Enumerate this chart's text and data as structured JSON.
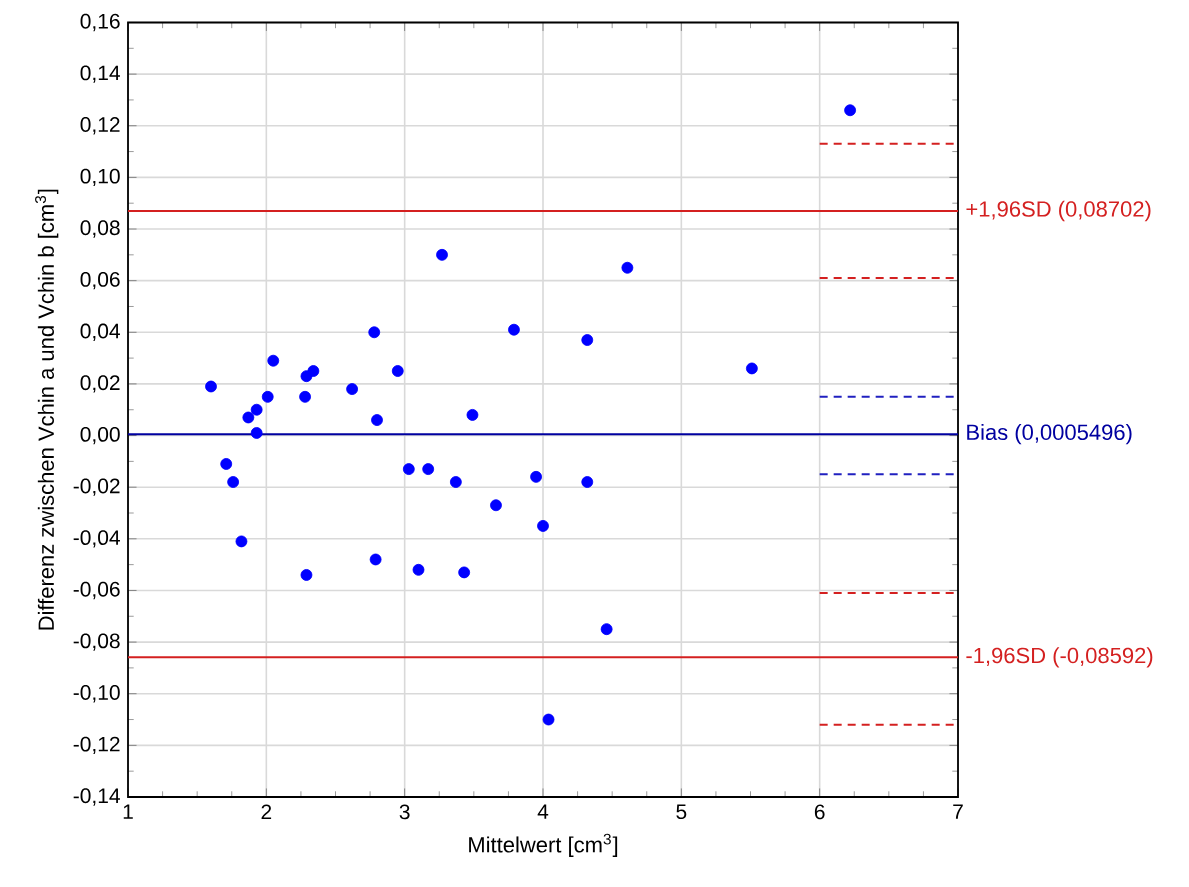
{
  "chart_data": {
    "type": "scatter",
    "xlabel": "Mittelwert [cm$^{3}$]",
    "ylabel": "Differenz zwischen Vchin a und Vchin b [cm$^{3}$]",
    "xlim": [
      1,
      7
    ],
    "xticks": [
      1,
      2,
      3,
      4,
      5,
      6,
      7
    ],
    "ylim": [
      -0.14,
      0.16
    ],
    "yticks": [
      {
        "value": -0.14,
        "label": "-0,14"
      },
      {
        "value": -0.12,
        "label": "-0,12"
      },
      {
        "value": -0.1,
        "label": "-0,10"
      },
      {
        "value": -0.08,
        "label": "-0,08"
      },
      {
        "value": -0.06,
        "label": "-0,06"
      },
      {
        "value": -0.04,
        "label": "-0,04"
      },
      {
        "value": -0.02,
        "label": "-0,02"
      },
      {
        "value": 0,
        "label": "0,00"
      },
      {
        "value": 0.02,
        "label": "0,02"
      },
      {
        "value": 0.04,
        "label": "0,04"
      },
      {
        "value": 0.06,
        "label": "0,06"
      },
      {
        "value": 0.08,
        "label": "0,08"
      },
      {
        "value": 0.1,
        "label": "0,10"
      },
      {
        "value": 0.12,
        "label": "0,12"
      },
      {
        "value": 0.14,
        "label": "0,14"
      },
      {
        "value": 0.16,
        "label": "0,16"
      }
    ],
    "grid": true,
    "marker": "circle",
    "series": [
      {
        "color": "#0000ff",
        "x": [
          1.6,
          1.87,
          1.93,
          1.93,
          2.01,
          2.05,
          2.28,
          2.29,
          2.34,
          2.62,
          2.78,
          2.8,
          2.95,
          3.27,
          3.49,
          3.79,
          4.32,
          4.61,
          5.51,
          6.22,
          1.71,
          1.76,
          1.82,
          2.29,
          2.79,
          3.03,
          3.17,
          3.1,
          3.37,
          3.43,
          3.66,
          3.95,
          4.0,
          4.32,
          4.46,
          4.04
        ],
        "values": [
          0.019,
          0.007,
          0.01,
          0.001,
          0.015,
          0.029,
          0.015,
          0.023,
          0.025,
          0.018,
          0.04,
          0.006,
          0.025,
          0.07,
          0.008,
          0.041,
          0.037,
          0.065,
          0.026,
          0.126,
          -0.011,
          -0.018,
          -0.041,
          -0.054,
          -0.048,
          -0.013,
          -0.013,
          -0.052,
          -0.018,
          -0.053,
          -0.027,
          -0.016,
          -0.035,
          -0.018,
          -0.075,
          -0.11
        ]
      },
      {
        "type": "line",
        "color": "#d42020",
        "line_style": "dashed",
        "marker": "none",
        "x": [
          6,
          7
        ],
        "values": [
          0.113,
          0.113
        ]
      },
      {
        "type": "line",
        "color": "#d42020",
        "line_style": "dashed",
        "marker": "none",
        "x": [
          6,
          7
        ],
        "values": [
          0.061,
          0.061
        ]
      },
      {
        "type": "line",
        "color": "#2020c0",
        "line_style": "dashed",
        "marker": "none",
        "x": [
          6,
          7
        ],
        "values": [
          0.015,
          0.015
        ]
      },
      {
        "type": "line",
        "color": "#2020c0",
        "line_style": "dashed",
        "marker": "none",
        "x": [
          6,
          7
        ],
        "values": [
          -0.015,
          -0.015
        ]
      },
      {
        "type": "line",
        "color": "#d42020",
        "line_style": "dashed",
        "marker": "none",
        "x": [
          6,
          7
        ],
        "values": [
          -0.061,
          -0.061
        ]
      },
      {
        "type": "line",
        "color": "#d42020",
        "line_style": "dashed",
        "marker": "none",
        "x": [
          6,
          7
        ],
        "values": [
          -0.112,
          -0.112
        ]
      }
    ],
    "ref_lines": [
      {
        "axis": "y",
        "value": 0.08702,
        "label": "+1,96SD (0,08702)",
        "color": "#d42020"
      },
      {
        "axis": "y",
        "value": 0.0005496,
        "label": "Bias (0,0005496)",
        "color": "#0000a0"
      },
      {
        "axis": "y",
        "value": -0.08592,
        "label": "-1,96SD (-0,08592)",
        "color": "#d42020"
      }
    ]
  }
}
